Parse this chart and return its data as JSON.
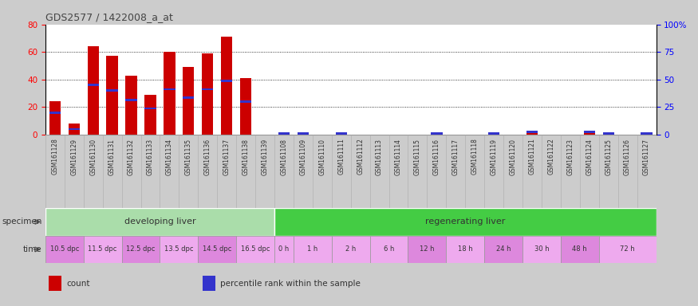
{
  "title": "GDS2577 / 1422008_a_at",
  "samples": [
    "GSM161128",
    "GSM161129",
    "GSM161130",
    "GSM161131",
    "GSM161132",
    "GSM161133",
    "GSM161134",
    "GSM161135",
    "GSM161136",
    "GSM161137",
    "GSM161138",
    "GSM161139",
    "GSM161108",
    "GSM161109",
    "GSM161110",
    "GSM161111",
    "GSM161112",
    "GSM161113",
    "GSM161114",
    "GSM161115",
    "GSM161116",
    "GSM161117",
    "GSM161118",
    "GSM161119",
    "GSM161120",
    "GSM161121",
    "GSM161122",
    "GSM161123",
    "GSM161124",
    "GSM161125",
    "GSM161126",
    "GSM161127"
  ],
  "count_values": [
    24,
    8,
    64,
    57,
    43,
    29,
    60,
    49,
    59,
    71,
    41,
    0,
    1,
    1,
    0,
    1,
    0,
    0,
    0,
    0,
    1,
    0,
    0,
    1,
    0,
    3,
    0,
    0,
    3,
    1,
    0,
    1
  ],
  "percentile_values": [
    16,
    4,
    36,
    32,
    25,
    19,
    33,
    27,
    33,
    39,
    24,
    0,
    1,
    1,
    0,
    1,
    0,
    0,
    0,
    0,
    1,
    0,
    0,
    1,
    0,
    2,
    0,
    0,
    2,
    1,
    0,
    1
  ],
  "bar_color": "#cc0000",
  "percentile_color": "#3333cc",
  "ylim_left": [
    0,
    80
  ],
  "ylim_right": [
    0,
    100
  ],
  "yticks_left": [
    0,
    20,
    40,
    60,
    80
  ],
  "yticks_right": [
    0,
    25,
    50,
    75,
    100
  ],
  "ytick_labels_right": [
    "0",
    "25",
    "50",
    "75",
    "100%"
  ],
  "specimen_groups": [
    {
      "label": "developing liver",
      "start": 0,
      "end": 12,
      "color": "#aaddaa"
    },
    {
      "label": "regenerating liver",
      "start": 12,
      "end": 32,
      "color": "#44cc44"
    }
  ],
  "time_groups": [
    {
      "label": "10.5 dpc",
      "start": 0,
      "end": 2,
      "color": "#dd88dd"
    },
    {
      "label": "11.5 dpc",
      "start": 2,
      "end": 4,
      "color": "#eeaaee"
    },
    {
      "label": "12.5 dpc",
      "start": 4,
      "end": 6,
      "color": "#dd88dd"
    },
    {
      "label": "13.5 dpc",
      "start": 6,
      "end": 8,
      "color": "#eeaaee"
    },
    {
      "label": "14.5 dpc",
      "start": 8,
      "end": 10,
      "color": "#dd88dd"
    },
    {
      "label": "16.5 dpc",
      "start": 10,
      "end": 12,
      "color": "#eeaaee"
    },
    {
      "label": "0 h",
      "start": 12,
      "end": 13,
      "color": "#eeaaee"
    },
    {
      "label": "1 h",
      "start": 13,
      "end": 15,
      "color": "#eeaaee"
    },
    {
      "label": "2 h",
      "start": 15,
      "end": 17,
      "color": "#eeaaee"
    },
    {
      "label": "6 h",
      "start": 17,
      "end": 19,
      "color": "#eeaaee"
    },
    {
      "label": "12 h",
      "start": 19,
      "end": 21,
      "color": "#dd88dd"
    },
    {
      "label": "18 h",
      "start": 21,
      "end": 23,
      "color": "#eeaaee"
    },
    {
      "label": "24 h",
      "start": 23,
      "end": 25,
      "color": "#dd88dd"
    },
    {
      "label": "30 h",
      "start": 25,
      "end": 27,
      "color": "#eeaaee"
    },
    {
      "label": "48 h",
      "start": 27,
      "end": 29,
      "color": "#dd88dd"
    },
    {
      "label": "72 h",
      "start": 29,
      "end": 32,
      "color": "#eeaaee"
    }
  ],
  "legend_items": [
    {
      "label": "count",
      "color": "#cc0000"
    },
    {
      "label": "percentile rank within the sample",
      "color": "#3333cc"
    }
  ],
  "fig_bg": "#cccccc",
  "plot_bg": "#ffffff",
  "label_area_bg": "#bbbbbb",
  "xtick_area_bg": "#cccccc"
}
